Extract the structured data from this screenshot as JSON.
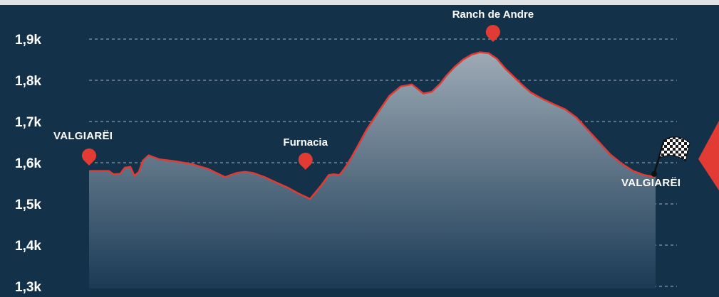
{
  "colors": {
    "background": "#13324a",
    "line": "#e23b34",
    "marker": "#e23b34",
    "grid": "#c9d3dc",
    "text": "#ffffff",
    "area_top": "#9eaab5",
    "area_bottom": "#1a3a55"
  },
  "chart_data": {
    "type": "area",
    "title": "",
    "xlabel": "",
    "ylabel": "",
    "ylim": [
      1300,
      1950
    ],
    "y_ticks": [
      {
        "value": 1900,
        "label": "1,9k"
      },
      {
        "value": 1800,
        "label": "1,8k"
      },
      {
        "value": 1700,
        "label": "1,7k"
      },
      {
        "value": 1600,
        "label": "1,6k"
      },
      {
        "value": 1500,
        "label": "1,5k"
      },
      {
        "value": 1400,
        "label": "1,4k"
      },
      {
        "value": 1300,
        "label": "1,3k"
      }
    ],
    "grid": true,
    "xlim": [
      0,
      100
    ],
    "series": [
      {
        "x": [
          0,
          3.5,
          4.3,
          5.5,
          6.3,
          7.3,
          8,
          8.8,
          9.5,
          10.5,
          11.5,
          12.5,
          15,
          18,
          21,
          24,
          26,
          27.5,
          29,
          31,
          33,
          35,
          37,
          39,
          41,
          42.3,
          43.2,
          44.2,
          45.2,
          46.2,
          47.5,
          49,
          51,
          53,
          55,
          57,
          59,
          60.5,
          62,
          63,
          64.5,
          66,
          67.5,
          69,
          70.5,
          72,
          73.5,
          75,
          76.5,
          78,
          80,
          82,
          84,
          86,
          88,
          90,
          92,
          94,
          96,
          98,
          100
        ],
        "y": [
          1580,
          1580,
          1572,
          1573,
          1588,
          1590,
          1568,
          1578,
          1605,
          1618,
          1613,
          1608,
          1604,
          1597,
          1585,
          1565,
          1575,
          1578,
          1575,
          1565,
          1552,
          1540,
          1525,
          1512,
          1545,
          1570,
          1572,
          1570,
          1588,
          1610,
          1642,
          1680,
          1722,
          1762,
          1785,
          1790,
          1768,
          1772,
          1792,
          1810,
          1832,
          1850,
          1862,
          1868,
          1866,
          1852,
          1828,
          1808,
          1788,
          1770,
          1755,
          1742,
          1730,
          1710,
          1680,
          1650,
          1620,
          1598,
          1580,
          1570,
          1565
        ]
      }
    ],
    "annotations": [
      {
        "label": "VALGIARËI",
        "x": 0,
        "y": 1600,
        "kind": "start"
      },
      {
        "label": "Furnacia",
        "x": 38.2,
        "y": 1583,
        "kind": "poi"
      },
      {
        "label": "Ranch de Andre",
        "x": 71.3,
        "y": 1893,
        "kind": "poi"
      },
      {
        "label": "VALGIARËI",
        "x": 100,
        "y": 1583,
        "kind": "finish"
      }
    ]
  }
}
